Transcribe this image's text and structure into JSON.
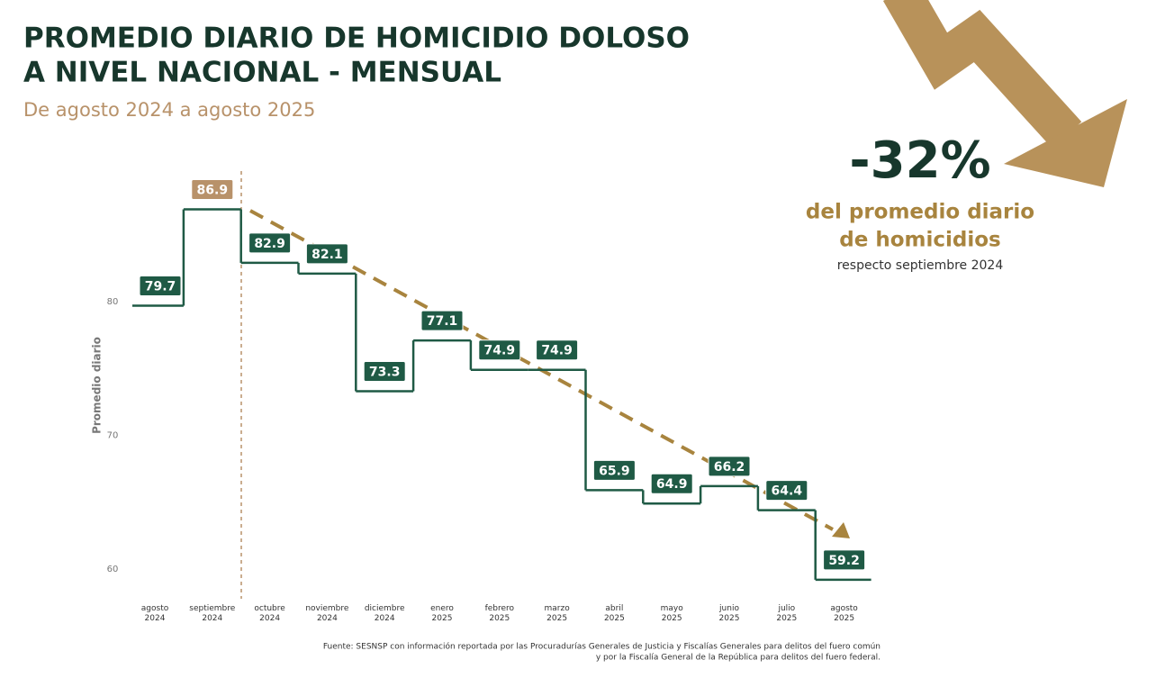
{
  "chart_data": {
    "type": "step",
    "title": [
      "PROMEDIO DIARIO DE HOMICIDIO DOLOSO",
      "A NIVEL NACIONAL - MENSUAL"
    ],
    "subtitle": "De agosto 2024 a agosto 2025",
    "y_label": "Promedio diario",
    "categories": [
      "agosto 2024",
      "septiembre 2024",
      "octubre 2024",
      "noviembre 2024",
      "diciembre 2024",
      "enero 2025",
      "febrero 2025",
      "marzo 2025",
      "abril 2025",
      "mayo 2025",
      "junio 2025",
      "julio 2025",
      "agosto 2025"
    ],
    "values": [
      79.7,
      86.9,
      82.9,
      82.1,
      73.3,
      77.1,
      74.9,
      74.9,
      65.9,
      64.9,
      66.2,
      64.4,
      59.2
    ],
    "color": "#1f5a45",
    "highlight_color": "#b8926a",
    "highlight_index": 1,
    "ylim": [
      58,
      90
    ],
    "yticks": [
      60,
      70,
      80
    ],
    "annotation": {
      "value": "-32%",
      "lines": [
        "del promedio diario",
        "de homicidios"
      ],
      "note": "respecto septiembre 2024"
    },
    "source": [
      "Fuente: SESNSP con información reportada por las Procuradurías Generales de Justicia y Fiscalías Generales para delitos del fuero común",
      "y por la Fiscalía General de la República para delitos del fuero federal."
    ]
  }
}
